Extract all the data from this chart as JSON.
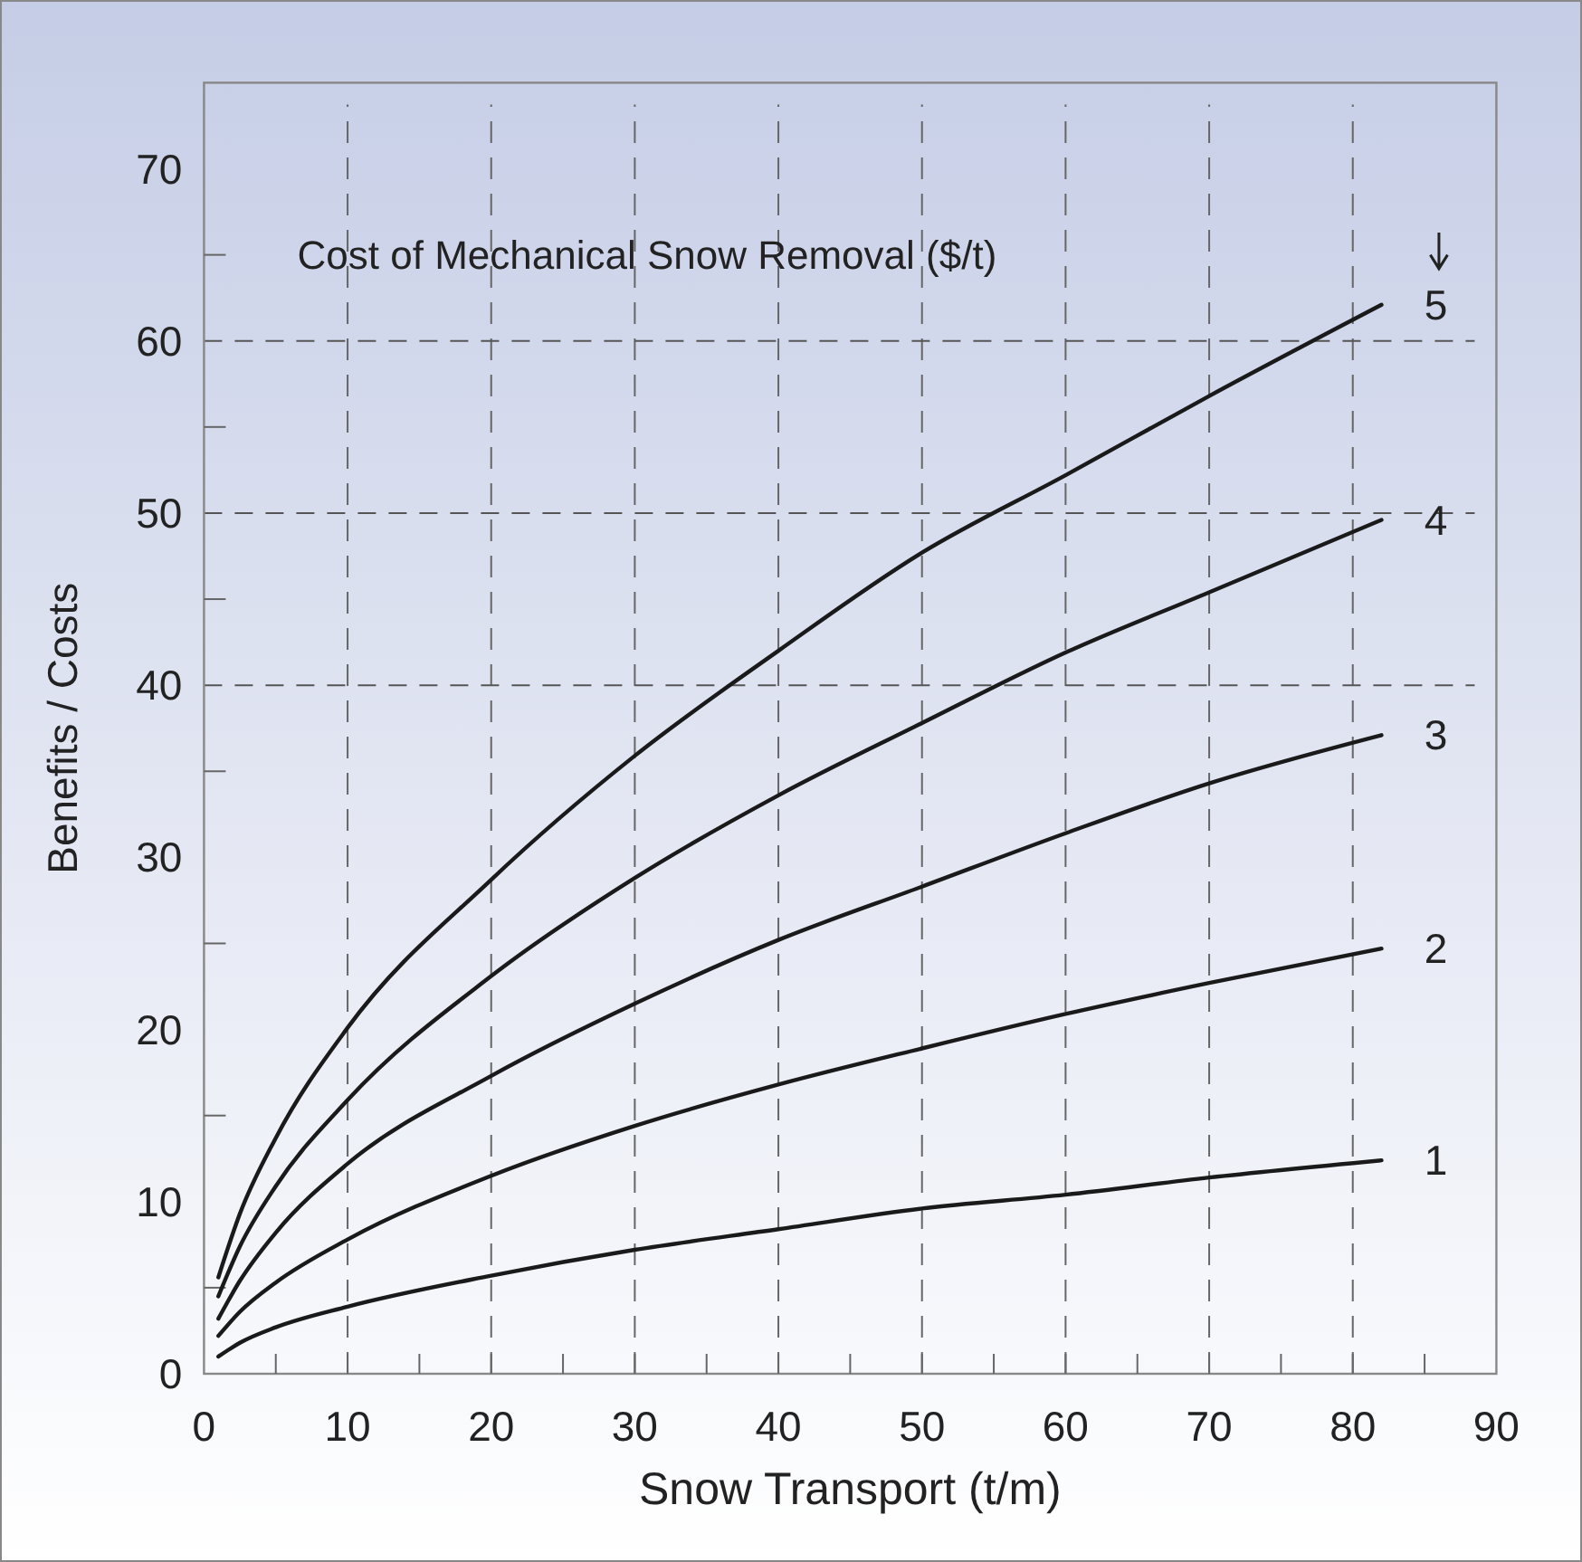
{
  "chart_data": {
    "type": "line",
    "legend_title": "Cost of Mechanical Snow Removal ($/t)",
    "xlabel": "Snow Transport (t/m)",
    "ylabel": "Benefits / Costs",
    "x": [
      1,
      2.5,
      5,
      10,
      20,
      30,
      40,
      50,
      60,
      70,
      82
    ],
    "series": [
      {
        "name": "1",
        "color": "#1a1a1a",
        "values": [
          1.0,
          1.8,
          2.7,
          3.9,
          5.7,
          7.2,
          8.4,
          9.6,
          10.4,
          11.4,
          12.4
        ]
      },
      {
        "name": "2",
        "color": "#1a1a1a",
        "values": [
          2.2,
          3.6,
          5.3,
          7.8,
          11.5,
          14.4,
          16.8,
          18.9,
          20.9,
          22.7,
          24.7
        ]
      },
      {
        "name": "3",
        "color": "#1a1a1a",
        "values": [
          3.2,
          5.4,
          8.2,
          12.2,
          17.3,
          21.5,
          25.2,
          28.3,
          31.4,
          34.3,
          37.1
        ]
      },
      {
        "name": "4",
        "color": "#1a1a1a",
        "values": [
          4.5,
          7.4,
          10.9,
          15.9,
          23.1,
          28.8,
          33.6,
          37.8,
          41.9,
          45.4,
          49.6
        ]
      },
      {
        "name": "5",
        "color": "#1a1a1a",
        "values": [
          5.6,
          9.3,
          13.7,
          20.1,
          28.7,
          35.9,
          42.0,
          47.7,
          52.2,
          56.8,
          62.1
        ]
      }
    ],
    "xlim": [
      0,
      90
    ],
    "ylim": [
      0,
      75
    ],
    "xticks": [
      0,
      {
        "value": 5,
        "label": null
      },
      10,
      {
        "value": 15,
        "label": null
      },
      20,
      {
        "value": 25,
        "label": null
      },
      30,
      {
        "value": 35,
        "label": null
      },
      40,
      {
        "value": 45,
        "label": null
      },
      50,
      {
        "value": 55,
        "label": null
      },
      60,
      {
        "value": 65,
        "label": null
      },
      70,
      {
        "value": 75,
        "label": null
      },
      80,
      {
        "value": 85,
        "label": null
      },
      90
    ],
    "yticks": [
      0,
      {
        "value": 5,
        "label": null
      },
      10,
      {
        "value": 15,
        "label": null
      },
      20,
      {
        "value": 25,
        "label": null
      },
      30,
      {
        "value": 35,
        "label": null
      },
      40,
      {
        "value": 45,
        "label": null
      },
      50,
      {
        "value": 55,
        "label": null
      },
      60,
      {
        "value": 65,
        "label": null
      },
      70
    ],
    "grid": "x",
    "ref_lines": [
      {
        "axis": "y",
        "value": 40,
        "color": "#555555",
        "line_style": "dashed"
      },
      {
        "axis": "y",
        "value": 50,
        "color": "#555555",
        "line_style": "dashed"
      },
      {
        "axis": "y",
        "value": 60,
        "color": "#555555",
        "line_style": "dashed"
      }
    ],
    "line_style": "solid",
    "marker": "none"
  }
}
